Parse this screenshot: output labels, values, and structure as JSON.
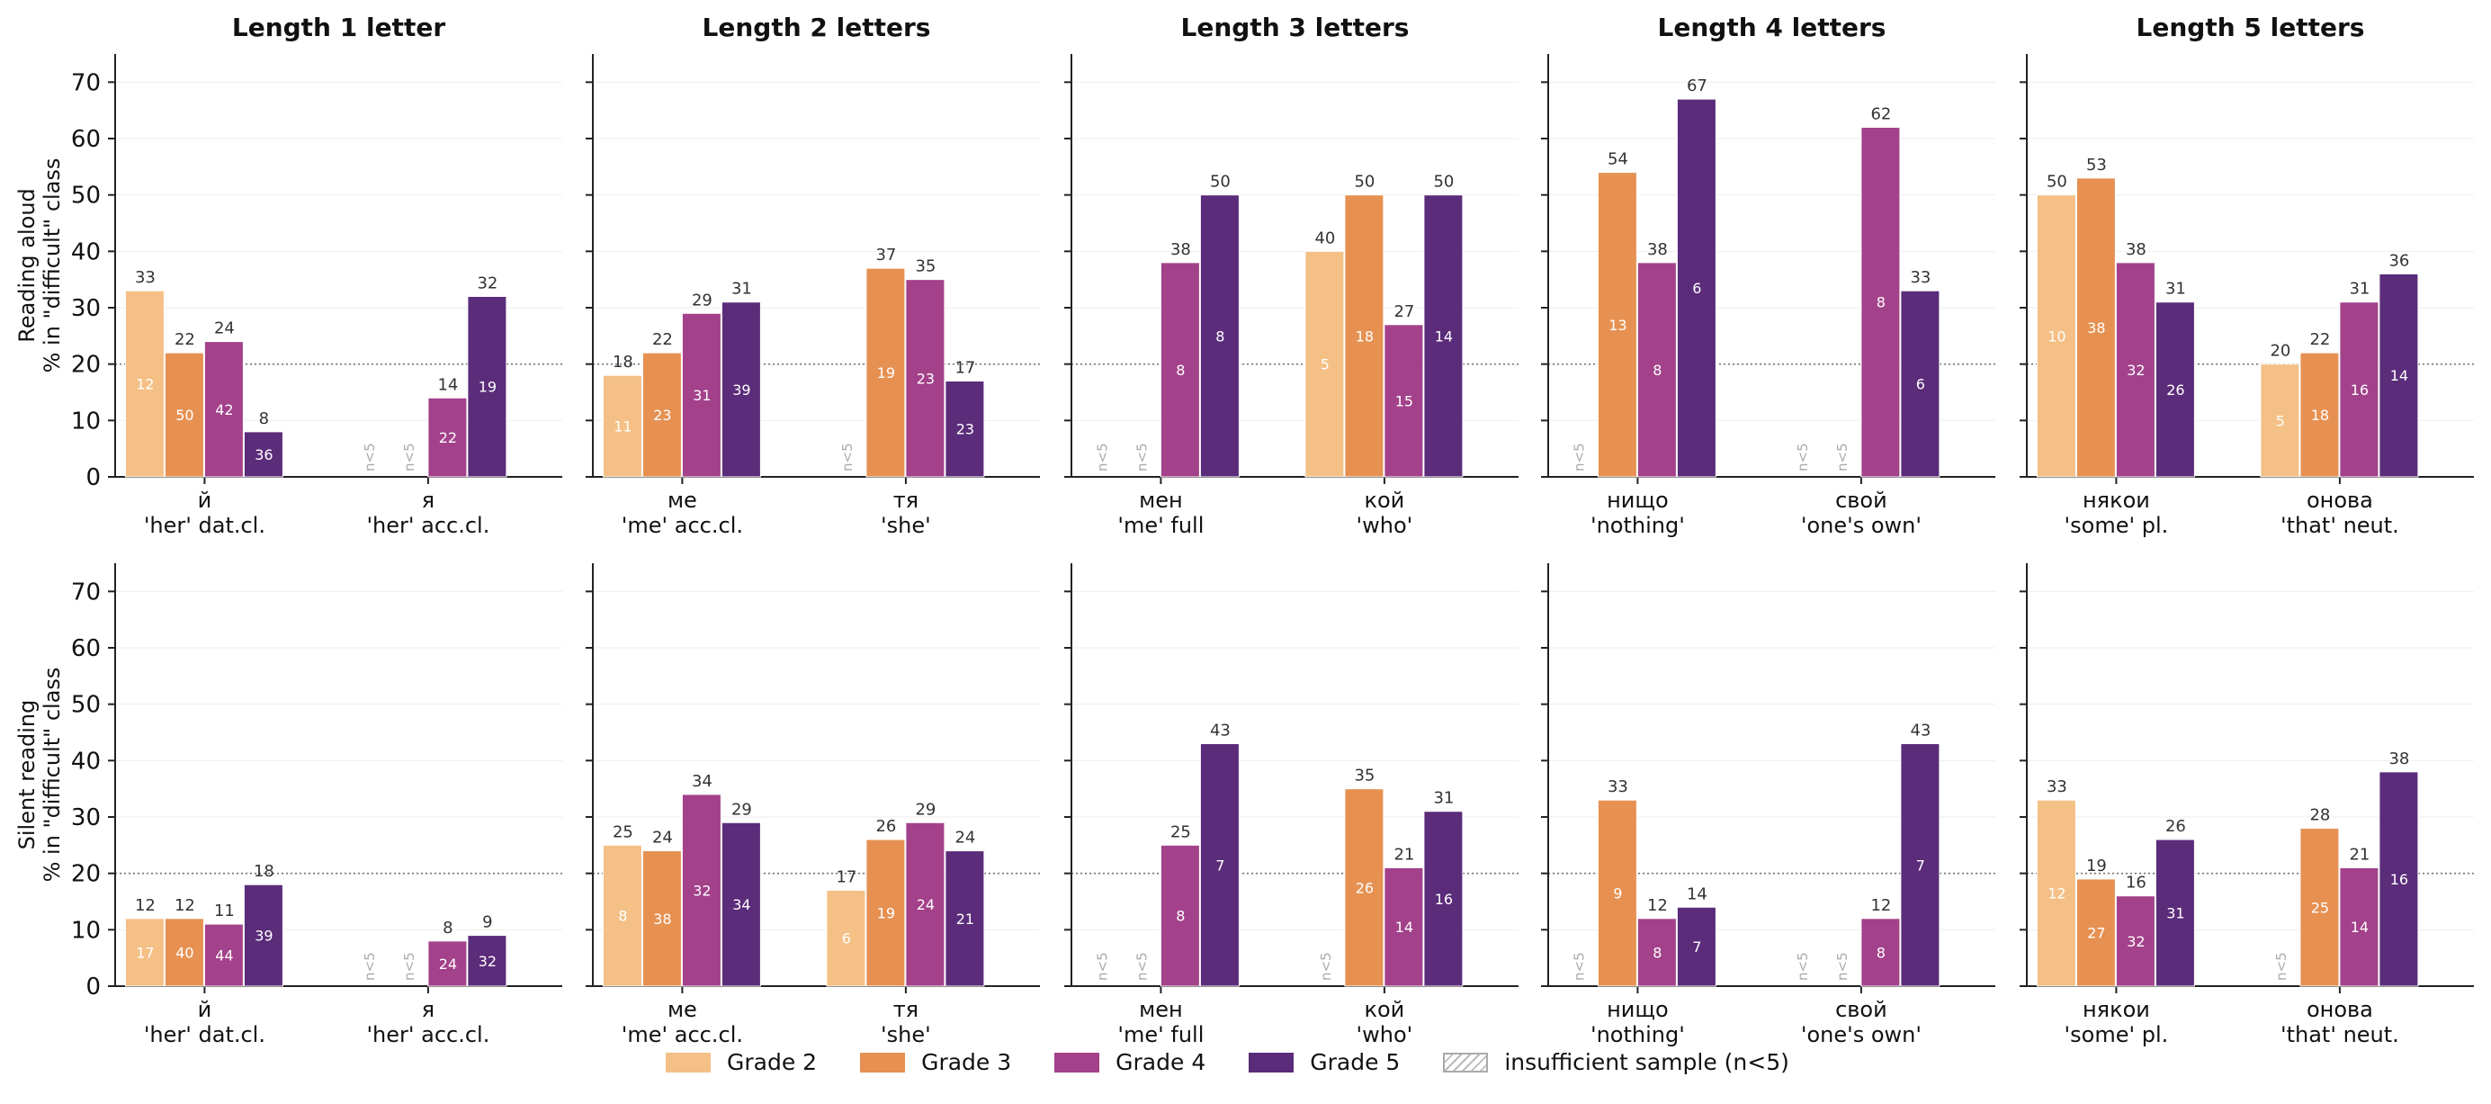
{
  "colors": {
    "grade2": "#F4C086",
    "grade3": "#E69152",
    "grade4": "#A3418A",
    "grade5": "#5B2C7A",
    "hatch": "#BBBBBB"
  },
  "chart_data": {
    "type": "bar",
    "grid": true,
    "reference_line": 20,
    "ylim": [
      0,
      75
    ],
    "yticks": [
      0,
      10,
      20,
      30,
      40,
      50,
      60,
      70
    ],
    "row_ylabels": [
      [
        "Reading aloud",
        "% in \"difficult\" class"
      ],
      [
        "Silent reading",
        "% in \"difficult\" class"
      ]
    ],
    "columns": [
      {
        "title": "Length 1 letter",
        "words": [
          [
            "й",
            "'her' dat.cl."
          ],
          [
            "я",
            "'her' acc.cl."
          ]
        ]
      },
      {
        "title": "Length 2 letters",
        "words": [
          [
            "ме",
            "'me' acc.cl."
          ],
          [
            "тя",
            "'she'"
          ]
        ]
      },
      {
        "title": "Length 3 letters",
        "words": [
          [
            "мен",
            "'me' full"
          ],
          [
            "кой",
            "'who'"
          ]
        ]
      },
      {
        "title": "Length 4 letters",
        "words": [
          [
            "нищо",
            "'nothing'"
          ],
          [
            "свой",
            "'one's own'"
          ]
        ]
      },
      {
        "title": "Length 5 letters",
        "words": [
          [
            "някои",
            "'some' pl."
          ],
          [
            "онова",
            "'that' neut."
          ]
        ]
      }
    ],
    "series_names": [
      "Grade 2",
      "Grade 3",
      "Grade 4",
      "Grade 5"
    ],
    "hatch_label": "insufficient sample (n<5)",
    "insufficient_label": "n<5",
    "rows": [
      [
        [
          [
            33,
            12
          ],
          [
            22,
            50
          ],
          [
            24,
            42
          ],
          [
            8,
            36
          ]
        ],
        [
          null,
          null,
          [
            14,
            22
          ],
          [
            32,
            19
          ]
        ],
        [
          [
            18,
            11
          ],
          [
            22,
            23
          ],
          [
            29,
            31
          ],
          [
            31,
            39
          ]
        ],
        [
          null,
          [
            37,
            19
          ],
          [
            35,
            23
          ],
          [
            17,
            23
          ]
        ],
        [
          null,
          null,
          [
            38,
            8
          ],
          [
            50,
            8
          ]
        ],
        [
          [
            40,
            5
          ],
          [
            50,
            18
          ],
          [
            27,
            15
          ],
          [
            50,
            14
          ]
        ],
        [
          null,
          [
            54,
            13
          ],
          [
            38,
            8
          ],
          [
            67,
            6
          ]
        ],
        [
          null,
          null,
          [
            62,
            8
          ],
          [
            33,
            6
          ]
        ],
        [
          [
            50,
            10
          ],
          [
            53,
            38
          ],
          [
            38,
            32
          ],
          [
            31,
            26
          ]
        ],
        [
          [
            20,
            5
          ],
          [
            22,
            18
          ],
          [
            31,
            16
          ],
          [
            36,
            14
          ]
        ]
      ],
      [
        [
          [
            12,
            17
          ],
          [
            12,
            40
          ],
          [
            11,
            44
          ],
          [
            18,
            39
          ]
        ],
        [
          null,
          null,
          [
            8,
            24
          ],
          [
            9,
            32
          ]
        ],
        [
          [
            25,
            8
          ],
          [
            24,
            38
          ],
          [
            34,
            32
          ],
          [
            29,
            34
          ]
        ],
        [
          [
            17,
            6
          ],
          [
            26,
            19
          ],
          [
            29,
            24
          ],
          [
            24,
            21
          ]
        ],
        [
          null,
          null,
          [
            25,
            8
          ],
          [
            43,
            7
          ]
        ],
        [
          null,
          [
            35,
            26
          ],
          [
            21,
            14
          ],
          [
            31,
            16
          ]
        ],
        [
          null,
          [
            33,
            9
          ],
          [
            12,
            8
          ],
          [
            14,
            7
          ]
        ],
        [
          null,
          null,
          [
            12,
            8
          ],
          [
            43,
            7
          ]
        ],
        [
          [
            33,
            12
          ],
          [
            19,
            27
          ],
          [
            16,
            32
          ],
          [
            26,
            31
          ]
        ],
        [
          null,
          [
            28,
            25
          ],
          [
            21,
            14
          ],
          [
            38,
            16
          ]
        ]
      ]
    ]
  }
}
